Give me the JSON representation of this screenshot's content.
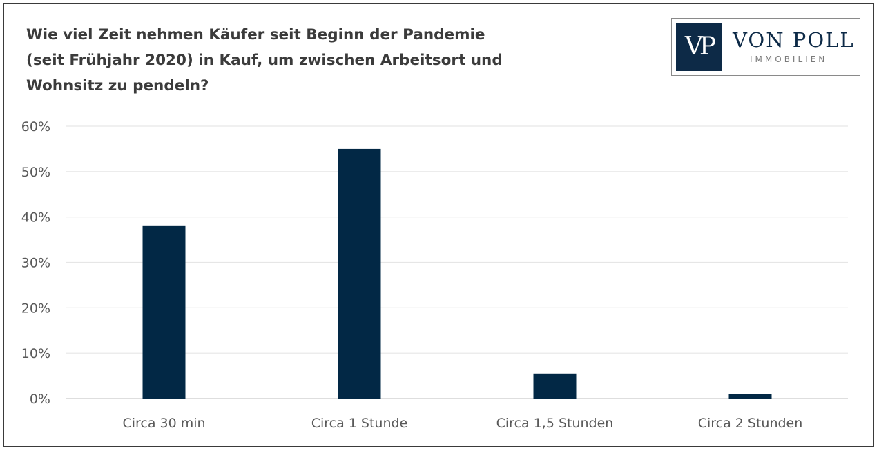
{
  "logo": {
    "mark": "VP",
    "name": "VON POLL",
    "sub": "IMMOBILIEN"
  },
  "chart_data": {
    "type": "bar",
    "title_lines": [
      "Wie viel Zeit nehmen Käufer seit Beginn der Pandemie",
      "(seit Frühjahr 2020) in Kauf, um zwischen Arbeitsort und",
      "Wohnsitz zu pendeln?"
    ],
    "categories": [
      "Circa 30 min",
      "Circa 1 Stunde",
      "Circa 1,5 Stunden",
      "Circa 2 Stunden"
    ],
    "values": [
      38,
      55,
      5.5,
      1
    ],
    "ylim": [
      0,
      60
    ],
    "yticks": [
      0,
      10,
      20,
      30,
      40,
      50,
      60
    ],
    "ytick_labels": [
      "0%",
      "10%",
      "20%",
      "30%",
      "40%",
      "50%",
      "60%"
    ],
    "xlabel": "",
    "ylabel": "",
    "grid": true,
    "bar_color": "#022845",
    "grid_color": "#e6e6e6"
  }
}
